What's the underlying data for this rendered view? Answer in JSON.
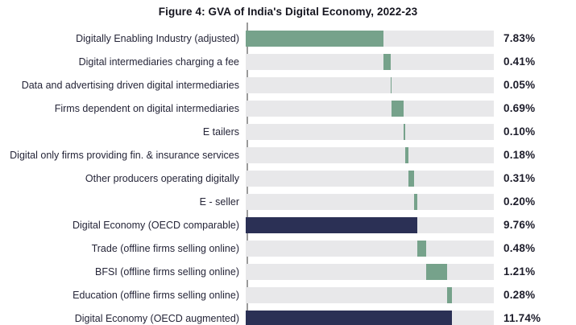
{
  "title": "Figure 4: GVA of India's Digital Economy, 2022-23",
  "chart_data": {
    "type": "bar",
    "subtype": "horizontal-waterfall",
    "title": "Figure 4: GVA of India's Digital Economy, 2022-23",
    "unit": "%",
    "axis_max": 14.1,
    "legend": "none",
    "grid": false,
    "colors": {
      "increment": "#76a28b",
      "total": "#2b3055",
      "track": "#e8e8ea",
      "axis": "#9b9b9b",
      "title_text": "#15151f",
      "label_text": "#252538",
      "value_text": "#1c1c2a"
    },
    "rows": [
      {
        "label": "Digitally Enabling Industry (adjusted)",
        "value": 7.83,
        "display": "7.83%",
        "start": 0,
        "kind": "increment"
      },
      {
        "label": "Digital intermediaries charging a fee",
        "value": 0.41,
        "display": "0.41%",
        "start": 7.83,
        "kind": "increment"
      },
      {
        "label": "Data and advertising driven digital intermediaries",
        "value": 0.05,
        "display": "0.05%",
        "start": 8.24,
        "kind": "increment"
      },
      {
        "label": "Firms dependent on digital intermediaries",
        "value": 0.69,
        "display": "0.69%",
        "start": 8.29,
        "kind": "increment"
      },
      {
        "label": "E tailers",
        "value": 0.1,
        "display": "0.10%",
        "start": 8.98,
        "kind": "increment"
      },
      {
        "label": "Digital only firms providing fin. & insurance services",
        "value": 0.18,
        "display": "0.18%",
        "start": 9.08,
        "kind": "increment"
      },
      {
        "label": "Other producers operating digitally",
        "value": 0.31,
        "display": "0.31%",
        "start": 9.26,
        "kind": "increment"
      },
      {
        "label": "E - seller",
        "value": 0.2,
        "display": "0.20%",
        "start": 9.57,
        "kind": "increment"
      },
      {
        "label": "Digital Economy (OECD comparable)",
        "value": 9.76,
        "display": "9.76%",
        "start": 0,
        "kind": "total"
      },
      {
        "label": "Trade (offline firms selling online)",
        "value": 0.48,
        "display": "0.48%",
        "start": 9.76,
        "kind": "increment"
      },
      {
        "label": "BFSI (offline firms selling online)",
        "value": 1.21,
        "display": "1.21%",
        "start": 10.24,
        "kind": "increment"
      },
      {
        "label": "Education (offline firms selling online)",
        "value": 0.28,
        "display": "0.28%",
        "start": 11.45,
        "kind": "increment"
      },
      {
        "label": "Digital Economy (OECD augmented)",
        "value": 11.74,
        "display": "11.74%",
        "start": 0,
        "kind": "total"
      }
    ]
  }
}
